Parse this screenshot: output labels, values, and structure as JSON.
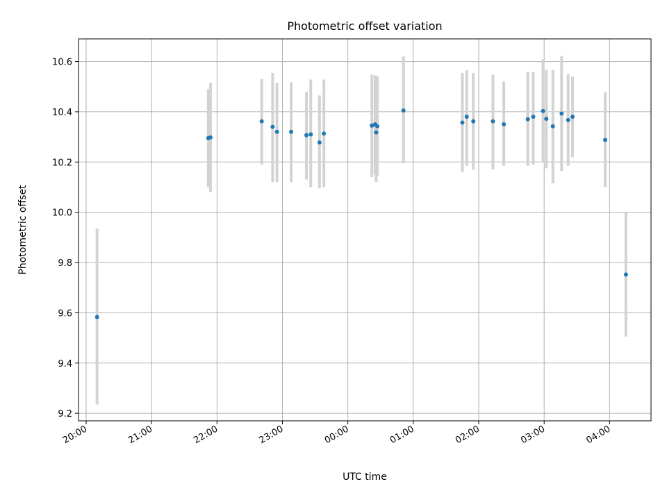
{
  "chart_data": {
    "type": "scatter",
    "title": "Photometric offset variation",
    "xlabel": "UTC time",
    "ylabel": "Photometric offset",
    "xlim": [
      "19:53",
      "04:38"
    ],
    "ylim": [
      9.17,
      10.69
    ],
    "x_ticks": [
      "20:00",
      "21:00",
      "22:00",
      "23:00",
      "00:00",
      "01:00",
      "02:00",
      "03:00",
      "04:00"
    ],
    "y_ticks": [
      "9.2",
      "9.4",
      "9.6",
      "9.8",
      "10.0",
      "10.2",
      "10.4",
      "10.6"
    ],
    "grid": true,
    "colors": {
      "point": "#1f77b4",
      "error_bar": "#d3d3d3",
      "grid": "#b0b0b0"
    },
    "points": [
      {
        "t": "20:10",
        "y": 9.583,
        "lo": 9.235,
        "hi": 9.935
      },
      {
        "t": "21:52",
        "y": 10.295,
        "lo": 10.1,
        "hi": 10.49
      },
      {
        "t": "21:54",
        "y": 10.298,
        "lo": 10.08,
        "hi": 10.515
      },
      {
        "t": "22:41",
        "y": 10.362,
        "lo": 10.19,
        "hi": 10.53
      },
      {
        "t": "22:51",
        "y": 10.34,
        "lo": 10.12,
        "hi": 10.555
      },
      {
        "t": "22:55",
        "y": 10.32,
        "lo": 10.12,
        "hi": 10.515
      },
      {
        "t": "23:08",
        "y": 10.32,
        "lo": 10.12,
        "hi": 10.518
      },
      {
        "t": "23:22",
        "y": 10.307,
        "lo": 10.13,
        "hi": 10.48
      },
      {
        "t": "23:26",
        "y": 10.31,
        "lo": 10.1,
        "hi": 10.528
      },
      {
        "t": "23:34",
        "y": 10.278,
        "lo": 10.095,
        "hi": 10.465
      },
      {
        "t": "23:38",
        "y": 10.313,
        "lo": 10.1,
        "hi": 10.528
      },
      {
        "t": "00:22",
        "y": 10.345,
        "lo": 10.14,
        "hi": 10.548
      },
      {
        "t": "00:25",
        "y": 10.35,
        "lo": 10.15,
        "hi": 10.545
      },
      {
        "t": "00:26",
        "y": 10.318,
        "lo": 10.12,
        "hi": 10.54
      },
      {
        "t": "00:27",
        "y": 10.342,
        "lo": 10.145,
        "hi": 10.54
      },
      {
        "t": "00:51",
        "y": 10.405,
        "lo": 10.195,
        "hi": 10.62
      },
      {
        "t": "01:45",
        "y": 10.357,
        "lo": 10.16,
        "hi": 10.555
      },
      {
        "t": "01:49",
        "y": 10.38,
        "lo": 10.185,
        "hi": 10.565
      },
      {
        "t": "01:55",
        "y": 10.362,
        "lo": 10.17,
        "hi": 10.555
      },
      {
        "t": "02:13",
        "y": 10.362,
        "lo": 10.17,
        "hi": 10.548
      },
      {
        "t": "02:23",
        "y": 10.35,
        "lo": 10.185,
        "hi": 10.52
      },
      {
        "t": "02:45",
        "y": 10.37,
        "lo": 10.185,
        "hi": 10.558
      },
      {
        "t": "02:50",
        "y": 10.38,
        "lo": 10.19,
        "hi": 10.558
      },
      {
        "t": "02:59",
        "y": 10.403,
        "lo": 10.2,
        "hi": 10.608
      },
      {
        "t": "03:02",
        "y": 10.372,
        "lo": 10.175,
        "hi": 10.567
      },
      {
        "t": "03:08",
        "y": 10.342,
        "lo": 10.115,
        "hi": 10.567
      },
      {
        "t": "03:16",
        "y": 10.393,
        "lo": 10.165,
        "hi": 10.622
      },
      {
        "t": "03:22",
        "y": 10.367,
        "lo": 10.185,
        "hi": 10.55
      },
      {
        "t": "03:26",
        "y": 10.38,
        "lo": 10.22,
        "hi": 10.54
      },
      {
        "t": "03:56",
        "y": 10.288,
        "lo": 10.1,
        "hi": 10.478
      },
      {
        "t": "04:15",
        "y": 9.752,
        "lo": 9.505,
        "hi": 10.0
      }
    ]
  }
}
